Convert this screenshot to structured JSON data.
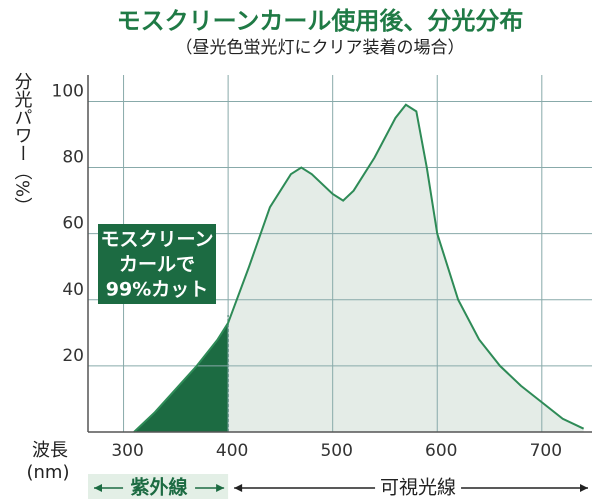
{
  "chart_data": {
    "type": "area",
    "title": "モスクリーンカール使用後、分光分布",
    "subtitle": "（昼光色蛍光灯にクリア装着の場合）",
    "y_label": "分光パワー（%）",
    "x_label": "波長",
    "x_unit": "(nm)",
    "x": [
      310,
      330,
      350,
      370,
      390,
      400,
      420,
      440,
      460,
      470,
      480,
      500,
      510,
      520,
      540,
      560,
      570,
      580,
      590,
      600,
      620,
      640,
      660,
      680,
      700,
      720,
      740
    ],
    "values": [
      0,
      6,
      13,
      20,
      28,
      33,
      50,
      68,
      78,
      80,
      78,
      72,
      70,
      73,
      83,
      95,
      99,
      97,
      80,
      60,
      40,
      28,
      20,
      14,
      9,
      4,
      1
    ],
    "color": "#2e8b57",
    "xlim": [
      266,
      748
    ],
    "ylim": [
      0,
      108
    ],
    "xticks": [
      300,
      400,
      500,
      600,
      700
    ],
    "yticks": [
      20,
      40,
      60,
      80,
      100
    ],
    "grid": true,
    "annotation": [
      "モスクリーン",
      "カールで",
      "99%カット"
    ],
    "regions": [
      {
        "label": "紫外線",
        "xrange": [
          266,
          400
        ]
      },
      {
        "label": "可視光線",
        "xrange": [
          400,
          748
        ]
      }
    ]
  }
}
